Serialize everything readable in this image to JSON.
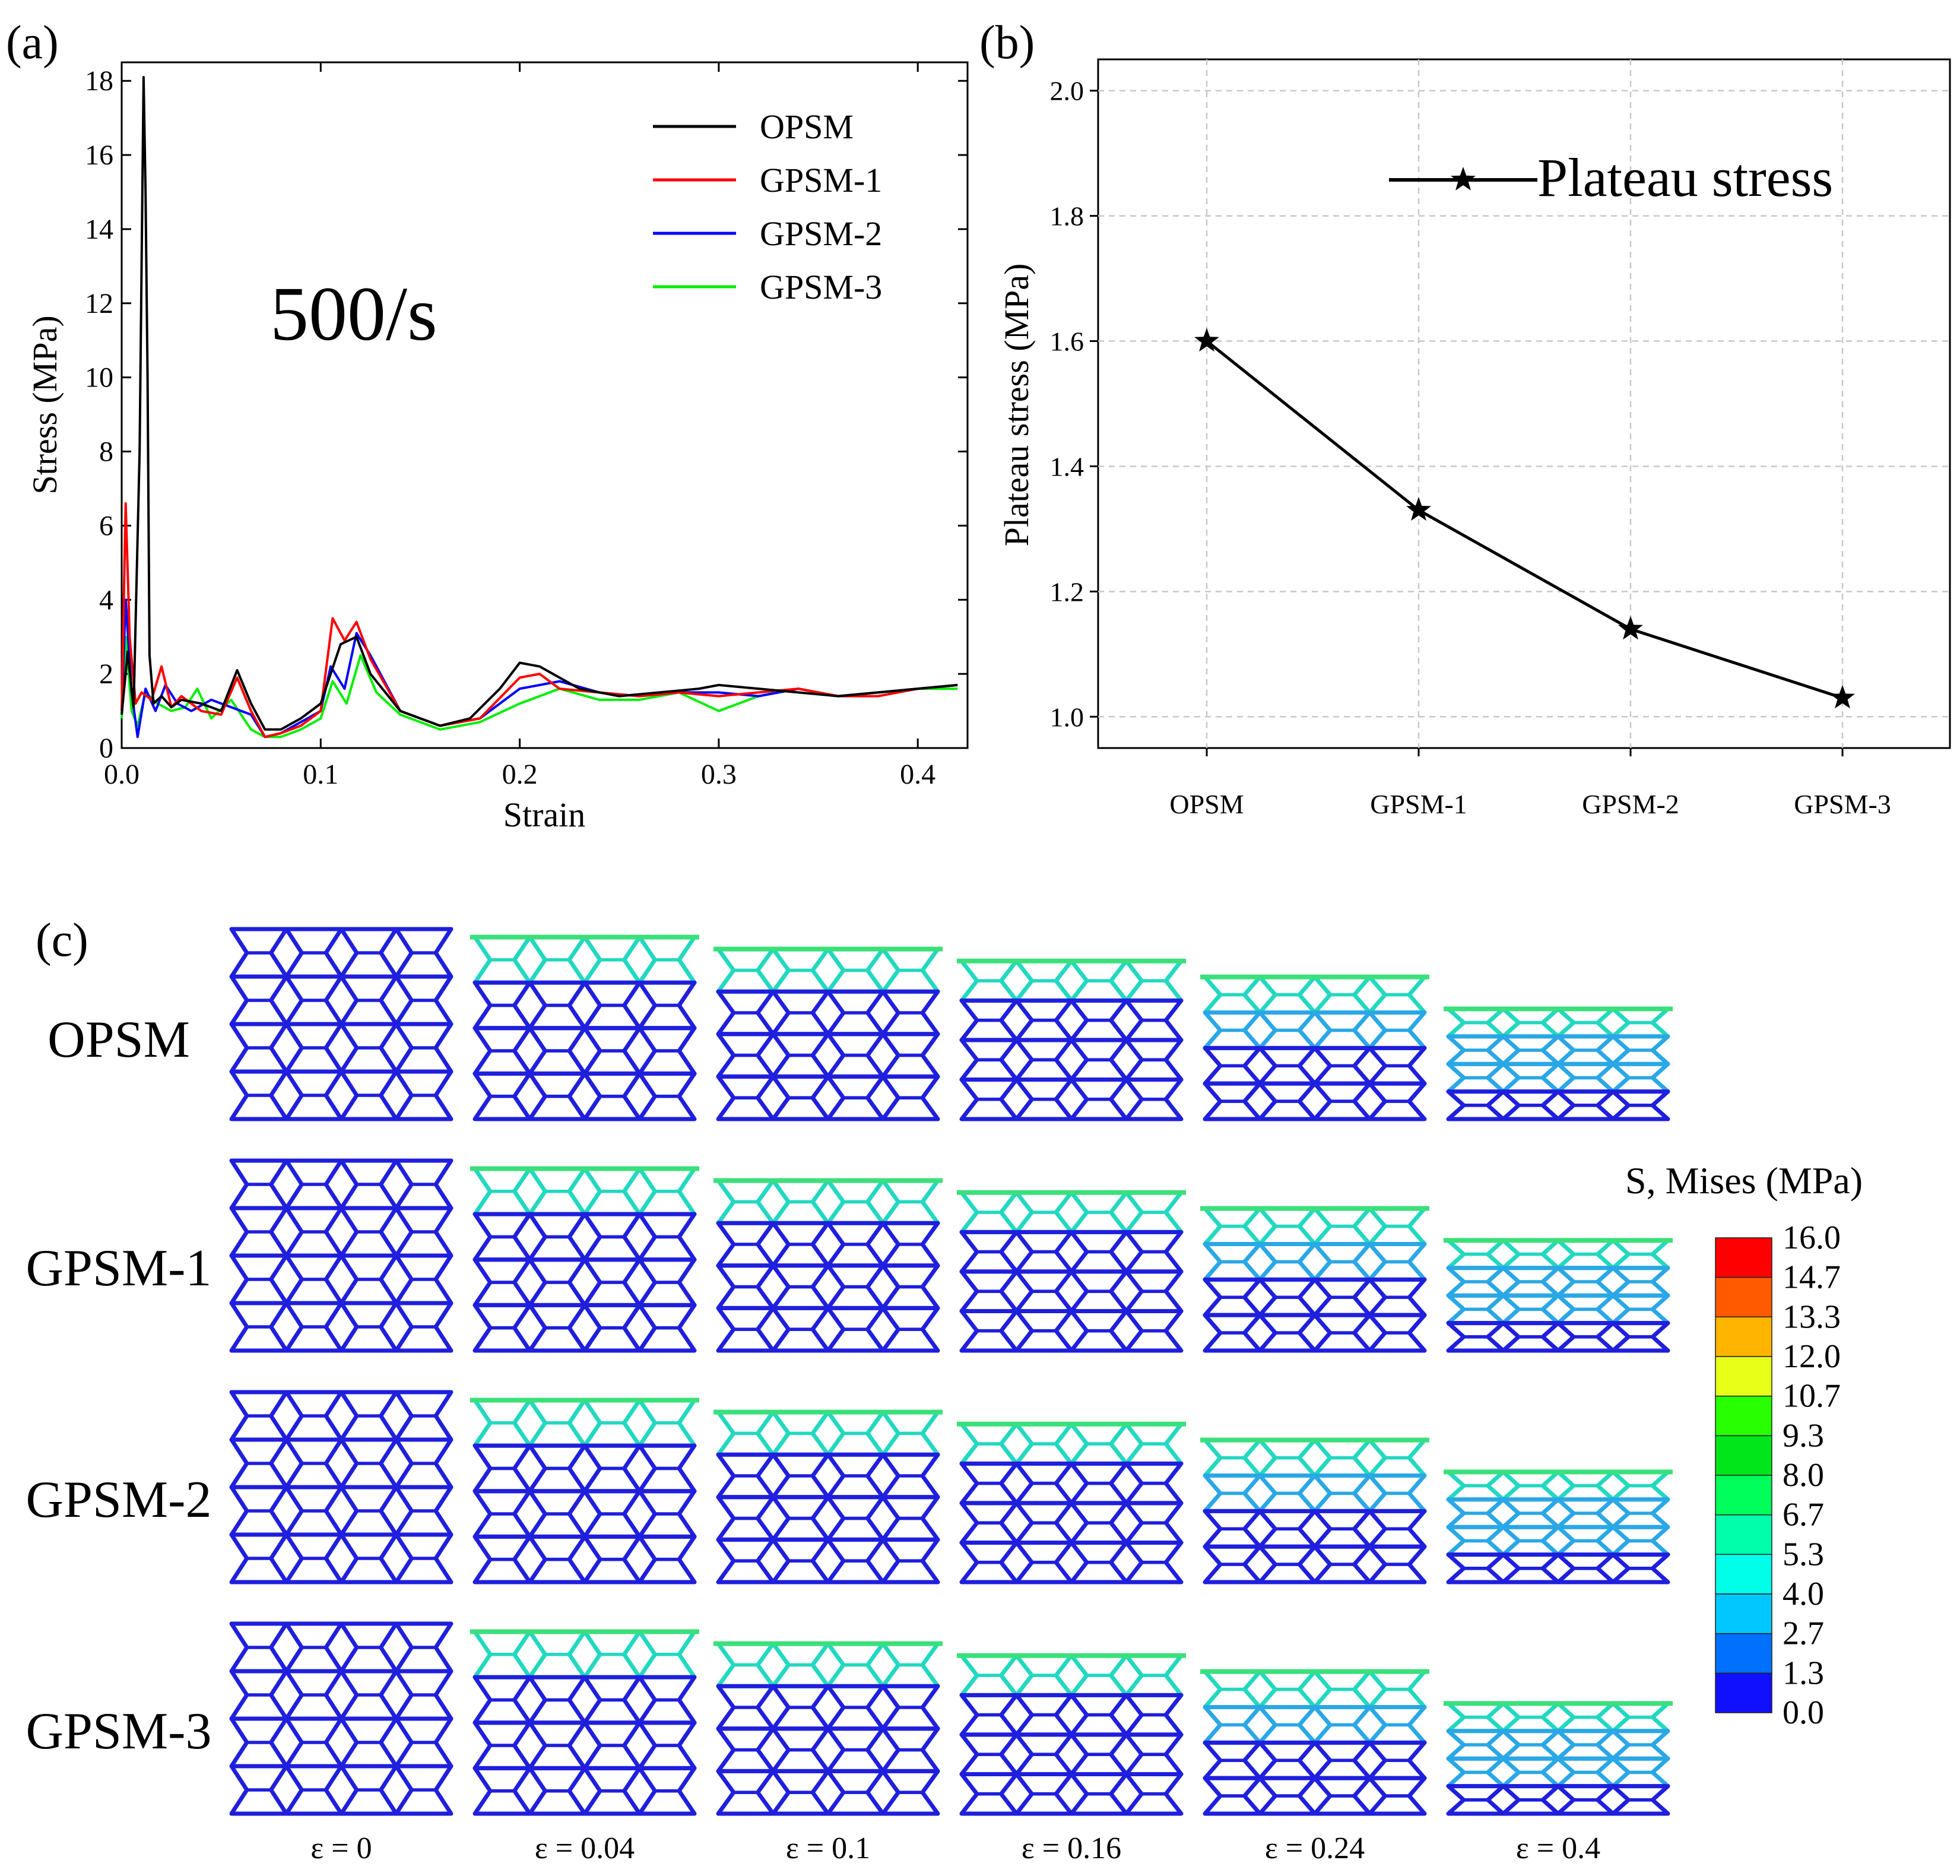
{
  "chart_data": [
    {
      "panel": "(a)",
      "type": "line",
      "annotation": "500/s",
      "xlabel": "Strain",
      "ylabel": "Stress (MPa)",
      "xlim": [
        0,
        0.425
      ],
      "ylim": [
        0,
        18.5
      ],
      "xticks": [
        "0.0",
        "0.1",
        "0.2",
        "0.3",
        "0.4"
      ],
      "yticks": [
        "0",
        "2",
        "4",
        "6",
        "8",
        "10",
        "12",
        "14",
        "16",
        "18"
      ],
      "legend_position": "top-right",
      "series": [
        {
          "name": "OPSM",
          "color": "#000000",
          "x": [
            0.0,
            0.003,
            0.006,
            0.009,
            0.011,
            0.012,
            0.013,
            0.014,
            0.016,
            0.02,
            0.025,
            0.03,
            0.04,
            0.05,
            0.058,
            0.065,
            0.072,
            0.08,
            0.09,
            0.1,
            0.11,
            0.118,
            0.125,
            0.14,
            0.16,
            0.175,
            0.19,
            0.2,
            0.21,
            0.22,
            0.23,
            0.25,
            0.27,
            0.29,
            0.3,
            0.32,
            0.34,
            0.36,
            0.38,
            0.4,
            0.42
          ],
          "y": [
            0.9,
            2.6,
            1.1,
            8.0,
            18.1,
            15.0,
            10.0,
            2.5,
            1.2,
            1.4,
            1.1,
            1.3,
            1.2,
            1.0,
            2.1,
            1.2,
            0.5,
            0.5,
            0.8,
            1.2,
            2.8,
            3.0,
            2.0,
            1.0,
            0.6,
            0.8,
            1.6,
            2.3,
            2.2,
            1.9,
            1.6,
            1.4,
            1.5,
            1.6,
            1.7,
            1.6,
            1.5,
            1.4,
            1.5,
            1.6,
            1.7
          ]
        },
        {
          "name": "GPSM-1",
          "color": "#ff0000",
          "x": [
            0.0,
            0.002,
            0.004,
            0.007,
            0.01,
            0.015,
            0.02,
            0.025,
            0.03,
            0.04,
            0.05,
            0.058,
            0.065,
            0.072,
            0.08,
            0.09,
            0.1,
            0.106,
            0.112,
            0.118,
            0.125,
            0.14,
            0.16,
            0.18,
            0.2,
            0.21,
            0.22,
            0.24,
            0.26,
            0.28,
            0.3,
            0.32,
            0.34,
            0.36,
            0.38,
            0.4,
            0.42
          ],
          "y": [
            1.0,
            6.6,
            3.0,
            1.2,
            1.5,
            1.3,
            2.2,
            1.1,
            1.4,
            1.0,
            0.9,
            1.9,
            1.0,
            0.3,
            0.4,
            0.6,
            1.0,
            3.5,
            2.9,
            3.4,
            2.4,
            1.0,
            0.6,
            0.8,
            1.9,
            2.0,
            1.6,
            1.5,
            1.4,
            1.5,
            1.4,
            1.5,
            1.6,
            1.4,
            1.4,
            1.6,
            1.7
          ]
        },
        {
          "name": "GPSM-2",
          "color": "#0000ff",
          "x": [
            0.0,
            0.002,
            0.005,
            0.008,
            0.012,
            0.017,
            0.022,
            0.028,
            0.035,
            0.045,
            0.055,
            0.065,
            0.072,
            0.08,
            0.09,
            0.1,
            0.105,
            0.112,
            0.118,
            0.125,
            0.14,
            0.16,
            0.18,
            0.2,
            0.22,
            0.24,
            0.26,
            0.28,
            0.3,
            0.32,
            0.34,
            0.36,
            0.38,
            0.4,
            0.42
          ],
          "y": [
            1.0,
            4.0,
            1.5,
            0.3,
            1.6,
            1.0,
            1.7,
            1.2,
            1.0,
            1.3,
            1.1,
            0.9,
            0.3,
            0.4,
            0.7,
            1.0,
            2.2,
            1.6,
            3.1,
            2.5,
            1.0,
            0.6,
            0.8,
            1.6,
            1.8,
            1.5,
            1.4,
            1.5,
            1.5,
            1.4,
            1.6,
            1.4,
            1.5,
            1.6,
            1.7
          ]
        },
        {
          "name": "GPSM-3",
          "color": "#00ee00",
          "x": [
            0.0,
            0.002,
            0.005,
            0.008,
            0.012,
            0.018,
            0.025,
            0.032,
            0.038,
            0.045,
            0.055,
            0.065,
            0.072,
            0.08,
            0.09,
            0.1,
            0.106,
            0.113,
            0.12,
            0.128,
            0.14,
            0.16,
            0.18,
            0.2,
            0.22,
            0.24,
            0.26,
            0.28,
            0.3,
            0.32,
            0.34,
            0.36,
            0.38,
            0.4,
            0.42
          ],
          "y": [
            0.8,
            3.0,
            1.0,
            0.6,
            1.5,
            1.2,
            1.0,
            1.1,
            1.6,
            0.8,
            1.3,
            0.5,
            0.3,
            0.3,
            0.5,
            0.8,
            1.8,
            1.2,
            2.5,
            1.5,
            0.9,
            0.5,
            0.7,
            1.2,
            1.6,
            1.3,
            1.3,
            1.5,
            1.0,
            1.4,
            1.6,
            1.4,
            1.5,
            1.6,
            1.6
          ]
        }
      ]
    },
    {
      "panel": "(b)",
      "type": "line",
      "ylabel": "Plateau stress (MPa)",
      "categories": [
        "OPSM",
        "GPSM-1",
        "GPSM-2",
        "GPSM-3"
      ],
      "ylim": [
        0.95,
        2.05
      ],
      "yticks": [
        "1.0",
        "1.2",
        "1.4",
        "1.6",
        "1.8",
        "2.0"
      ],
      "grid": true,
      "legend_position": "top-right",
      "series": [
        {
          "name": "Plateau stress",
          "color": "#000000",
          "marker": "star",
          "values": [
            1.6,
            1.33,
            1.14,
            1.03
          ]
        }
      ]
    },
    {
      "panel": "(c)",
      "type": "heatmap",
      "rows": [
        "OPSM",
        "GPSM-1",
        "GPSM-2",
        "GPSM-3"
      ],
      "columns": [
        "ε = 0",
        "ε = 0.04",
        "ε = 0.1",
        "ε = 0.16",
        "ε = 0.24",
        "ε = 0.4"
      ],
      "strains": [
        0,
        0.04,
        0.1,
        0.16,
        0.24,
        0.4
      ],
      "colorbar": {
        "title": "S, Mises (MPa)",
        "levels": [
          "16.0",
          "14.7",
          "13.3",
          "12.0",
          "10.7",
          "9.3",
          "8.0",
          "6.7",
          "5.3",
          "4.0",
          "2.7",
          "1.3",
          "0.0"
        ],
        "colors": [
          "#ff0000",
          "#ff5a00",
          "#ffb400",
          "#e8ff18",
          "#28ff00",
          "#00e61a",
          "#00ff5a",
          "#00ffaa",
          "#00ffe8",
          "#00c8ff",
          "#0070ff",
          "#1010ff"
        ]
      },
      "lattice_colors": {
        "base": "#1f1fdd",
        "compressed": "#2aa7e6",
        "peak": "#22d8c0",
        "hot": "#3ae07a"
      }
    }
  ],
  "labels": {
    "panel_a": "(a)",
    "panel_b": "(b)",
    "panel_c": "(c)"
  }
}
